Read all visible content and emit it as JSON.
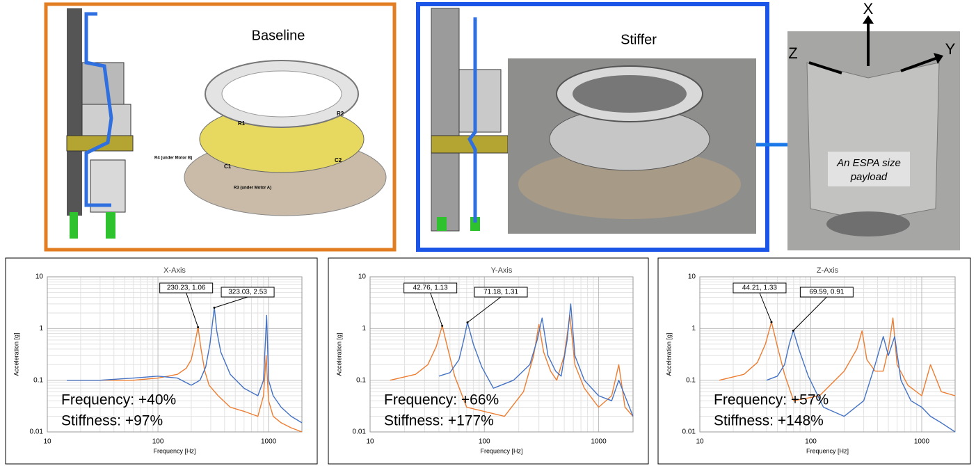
{
  "panels": [
    {
      "title": "Baseline"
    },
    {
      "title": "Stiffer"
    }
  ],
  "cad_labels": [
    "R1",
    "R2",
    "R4 (under Motor B)",
    "C1",
    "C2",
    "R3 (under Motor A)"
  ],
  "photo": {
    "axes": [
      "X",
      "Y",
      "Z"
    ],
    "caption_lines": [
      "An ESPA size",
      "payload"
    ]
  },
  "chart_data": [
    {
      "type": "line",
      "title": "X-Axis",
      "x_label": "Frequency [Hz]",
      "y_label": "Acceleration [g]",
      "log_x": true,
      "log_y": true,
      "grid": true,
      "minor_grid": true,
      "xlim": [
        10,
        2000
      ],
      "ylim": [
        0.01,
        10
      ],
      "xticks": [
        10,
        100,
        1000
      ],
      "yticks": [
        0.01,
        0.1,
        1,
        10
      ],
      "series": [
        {
          "color": "#ed7d31",
          "x": [
            15,
            30,
            60,
            100,
            150,
            180,
            200,
            215,
            230.23,
            245,
            265,
            290,
            350,
            450,
            600,
            800,
            900,
            950,
            1000,
            1100,
            1300,
            1600,
            2000
          ],
          "values": [
            0.1,
            0.1,
            0.1,
            0.11,
            0.13,
            0.17,
            0.25,
            0.5,
            1.06,
            0.4,
            0.15,
            0.08,
            0.05,
            0.03,
            0.025,
            0.02,
            0.05,
            0.3,
            0.04,
            0.02,
            0.015,
            0.012,
            0.01
          ]
        },
        {
          "color": "#4472c4",
          "x": [
            15,
            30,
            60,
            100,
            150,
            200,
            240,
            270,
            295,
            310,
            323.03,
            340,
            370,
            450,
            600,
            800,
            900,
            960,
            1000,
            1100,
            1300,
            1600,
            2000
          ],
          "values": [
            0.1,
            0.1,
            0.11,
            0.12,
            0.11,
            0.08,
            0.1,
            0.18,
            0.5,
            1.2,
            2.53,
            0.9,
            0.35,
            0.13,
            0.07,
            0.05,
            0.1,
            1.8,
            0.1,
            0.05,
            0.03,
            0.02,
            0.015
          ]
        }
      ],
      "annotations": [
        {
          "label": "230.23, 1.06",
          "x": 230.23,
          "y": 1.06
        },
        {
          "label": "323.03, 2.53",
          "x": 323.03,
          "y": 2.53
        }
      ],
      "notes": [
        "Frequency: +40%",
        "Stiffness: +97%"
      ]
    },
    {
      "type": "line",
      "title": "Y-Axis",
      "x_label": "Frequency [Hz]",
      "y_label": "Acceleration [g]",
      "log_x": true,
      "log_y": true,
      "grid": true,
      "minor_grid": true,
      "xlim": [
        10,
        2000
      ],
      "ylim": [
        0.01,
        10
      ],
      "xticks": [
        10,
        100,
        1000
      ],
      "yticks": [
        0.01,
        0.1,
        1,
        10
      ],
      "series": [
        {
          "color": "#ed7d31",
          "x": [
            15,
            25,
            32,
            38,
            42.76,
            48,
            55,
            70,
            150,
            220,
            270,
            300,
            330,
            380,
            430,
            500,
            560,
            620,
            750,
            1000,
            1300,
            1500,
            1700,
            2000
          ],
          "values": [
            0.1,
            0.13,
            0.2,
            0.45,
            1.13,
            0.4,
            0.12,
            0.03,
            0.02,
            0.06,
            0.3,
            1.2,
            0.35,
            0.15,
            0.1,
            0.3,
            1.8,
            0.2,
            0.07,
            0.03,
            0.05,
            0.2,
            0.03,
            0.02
          ]
        },
        {
          "color": "#4472c4",
          "x": [
            40,
            50,
            60,
            66,
            71.18,
            80,
            95,
            120,
            180,
            250,
            290,
            320,
            360,
            420,
            470,
            530,
            570,
            620,
            750,
            1000,
            1300,
            1500,
            2000
          ],
          "values": [
            0.12,
            0.14,
            0.25,
            0.6,
            1.31,
            0.5,
            0.18,
            0.07,
            0.1,
            0.2,
            0.6,
            1.6,
            0.3,
            0.15,
            0.12,
            0.6,
            3,
            0.3,
            0.1,
            0.05,
            0.04,
            0.1,
            0.02
          ]
        }
      ],
      "annotations": [
        {
          "label": "42.76, 1.13",
          "x": 42.76,
          "y": 1.13
        },
        {
          "label": "71.18, 1.31",
          "x": 71.18,
          "y": 1.31
        }
      ],
      "notes": [
        "Frequency: +66%",
        "Stiffness: +177%"
      ]
    },
    {
      "type": "line",
      "title": "Z-Axis",
      "x_label": "Frequency [Hz]",
      "y_label": "Acceleration [g]",
      "log_x": true,
      "log_y": true,
      "grid": true,
      "minor_grid": true,
      "xlim": [
        10,
        2000
      ],
      "ylim": [
        0.01,
        10
      ],
      "xticks": [
        10,
        100,
        1000
      ],
      "yticks": [
        0.01,
        0.1,
        1,
        10
      ],
      "series": [
        {
          "color": "#ed7d31",
          "x": [
            15,
            25,
            33,
            39,
            44.21,
            50,
            58,
            70,
            120,
            200,
            260,
            290,
            320,
            380,
            450,
            500,
            550,
            600,
            750,
            1000,
            1200,
            1500,
            2000
          ],
          "values": [
            0.1,
            0.13,
            0.22,
            0.5,
            1.33,
            0.45,
            0.13,
            0.04,
            0.05,
            0.15,
            0.4,
            0.9,
            0.25,
            0.15,
            0.15,
            0.4,
            1.6,
            0.2,
            0.08,
            0.05,
            0.2,
            0.06,
            0.05
          ]
        },
        {
          "color": "#4472c4",
          "x": [
            40,
            50,
            58,
            64,
            69.59,
            78,
            95,
            130,
            200,
            300,
            380,
            450,
            500,
            570,
            650,
            800,
            1000,
            1200,
            1500,
            2000
          ],
          "values": [
            0.1,
            0.12,
            0.2,
            0.5,
            0.91,
            0.4,
            0.12,
            0.03,
            0.02,
            0.04,
            0.2,
            0.7,
            0.3,
            0.7,
            0.1,
            0.04,
            0.03,
            0.02,
            0.015,
            0.01
          ]
        }
      ],
      "annotations": [
        {
          "label": "44.21, 1.33",
          "x": 44.21,
          "y": 1.33
        },
        {
          "label": "69.59, 0.91",
          "x": 69.59,
          "y": 0.91
        }
      ],
      "notes": [
        "Frequency: +57%",
        "Stiffness: +148%"
      ]
    }
  ]
}
